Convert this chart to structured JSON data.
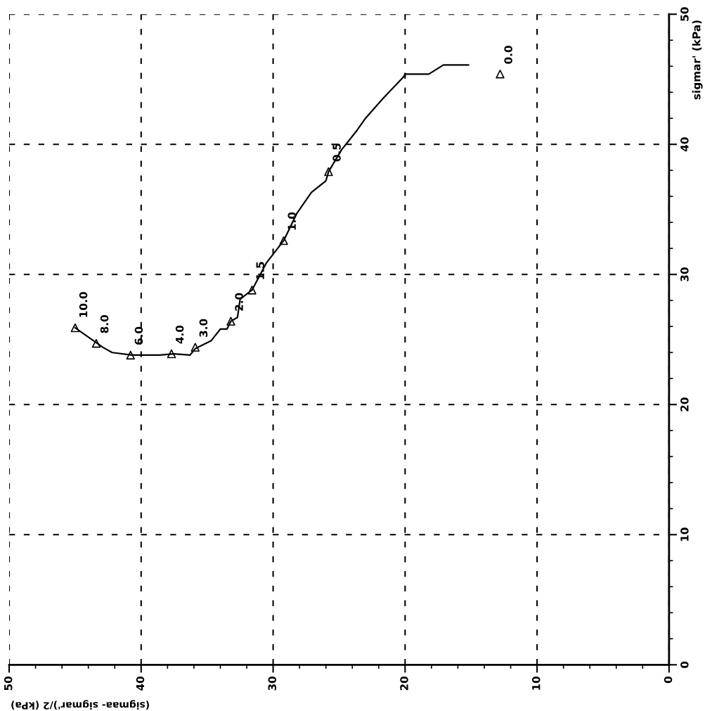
{
  "chart_data": {
    "type": "line",
    "xlabel": "(sigmaa- sigmar')/2 (kPa)",
    "ylabel": "sigmar' (kPa)",
    "xlim": [
      50,
      0
    ],
    "xticks": [
      50,
      40,
      30,
      20,
      10,
      0
    ],
    "ylim": [
      0,
      50
    ],
    "yticks": [
      0,
      10,
      20,
      30,
      40,
      50
    ],
    "grid": true,
    "series": [
      {
        "color": "#000000",
        "marker": "none",
        "x": [
          45.0,
          44.3,
          43.6,
          42.9,
          42.2,
          40.7,
          40.0,
          38.6,
          37.5,
          36.3,
          35.9,
          34.7,
          34.0,
          33.5,
          33.2,
          32.7,
          32.5,
          31.6,
          30.5,
          29.2,
          28.2,
          27.1,
          26.0,
          25.8,
          24.8,
          23.7,
          23.0,
          21.7,
          20.1,
          20.0,
          18.2,
          17.1,
          15.2
        ],
        "values": [
          25.9,
          25.4,
          24.9,
          24.4,
          24.0,
          23.8,
          23.8,
          23.8,
          23.9,
          23.8,
          24.3,
          24.9,
          25.8,
          25.8,
          26.4,
          26.7,
          28.1,
          28.8,
          30.9,
          32.6,
          34.7,
          36.3,
          37.2,
          37.9,
          39.6,
          41.0,
          42.0,
          43.5,
          45.2,
          45.4,
          45.4,
          46.1,
          46.1
        ]
      },
      {
        "type": "scatter",
        "color": "#000000",
        "marker": "triangle",
        "x": [
          45.0,
          43.4,
          40.8,
          37.7,
          35.9,
          33.2,
          31.6,
          29.2,
          25.8,
          12.8
        ],
        "values": [
          25.9,
          24.7,
          23.8,
          23.9,
          24.4,
          26.4,
          28.8,
          32.6,
          37.9,
          45.4
        ]
      }
    ],
    "annotations": [
      {
        "text": "10.0",
        "x": 45.0,
        "y": 25.9
      },
      {
        "text": "8.0",
        "x": 43.4,
        "y": 24.7
      },
      {
        "text": "6.0",
        "x": 40.8,
        "y": 23.8
      },
      {
        "text": "4.0",
        "x": 37.7,
        "y": 23.9
      },
      {
        "text": "3.0",
        "x": 35.9,
        "y": 24.4
      },
      {
        "text": "2.0",
        "x": 33.2,
        "y": 26.4
      },
      {
        "text": "1.5",
        "x": 31.6,
        "y": 28.8
      },
      {
        "text": "1.0",
        "x": 29.2,
        "y": 32.6
      },
      {
        "text": "0.5",
        "x": 25.8,
        "y": 37.9
      },
      {
        "text": "0.0",
        "x": 12.8,
        "y": 45.4
      }
    ]
  }
}
